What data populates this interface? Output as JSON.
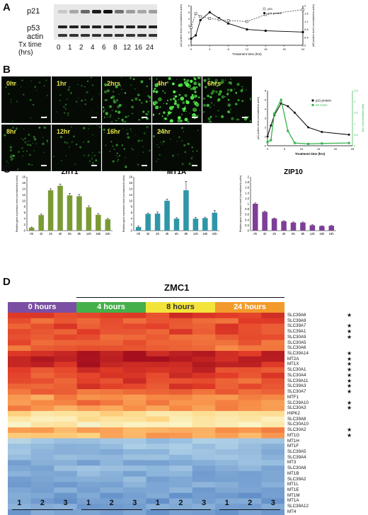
{
  "panels": {
    "a": "A",
    "b": "B",
    "c": "C",
    "d": "D"
  },
  "panelA": {
    "rows": [
      "p21",
      "p53",
      "actin"
    ],
    "tx_label": "Tx time\n(hrs)",
    "lanes": [
      "0",
      "1",
      "2",
      "4",
      "6",
      "8",
      "12",
      "16",
      "24"
    ],
    "chart": {
      "x": [
        0,
        1,
        2,
        4,
        6,
        8,
        12,
        16,
        24
      ],
      "p53": [
        0.9,
        1.6,
        1.45,
        1.35,
        1.3,
        1.25,
        1.2,
        1.55,
        1.8
      ],
      "p21": [
        1.0,
        1.5,
        3.8,
        5.0,
        4.1,
        3.3,
        2.4,
        2.2,
        2.0
      ],
      "xlabel": "Treatment time (hrs)",
      "ylabel_left": "p21 protein level (normalized to actin)",
      "ylabel_right": "p53 protein level (normalized to actin)",
      "legend": [
        "p53",
        "p21 protein"
      ]
    }
  },
  "panelB": {
    "labels": [
      "0hr",
      "1hr",
      "2hrs",
      "4hr",
      "6hrs",
      "8hr",
      "12hr",
      "16hr",
      "24hr"
    ],
    "density": [
      0.05,
      0.15,
      0.55,
      1.0,
      0.6,
      0.3,
      0.15,
      0.25,
      0.18
    ],
    "chart": {
      "x": [
        0,
        1,
        2,
        4,
        6,
        8,
        12,
        16,
        24
      ],
      "p21": [
        1.0,
        2.2,
        3.3,
        4.6,
        4.3,
        3.6,
        2.0,
        1.5,
        1.2
      ],
      "zn": [
        0.4,
        0.6,
        3.5,
        5.0,
        1.6,
        0.3,
        0.2,
        0.25,
        0.3
      ],
      "xlabel": "Treatment time (hrs)",
      "ylabel_left": "p21 protein level (normalized to actin)",
      "ylabel_right": "Zinc concentration (uM)",
      "legend": [
        "p21 protein",
        "Zn Conc."
      ],
      "colors": {
        "p21": "#111111",
        "zn": "#34b34a"
      }
    }
  },
  "panelC": {
    "categories": [
      "0h",
      "1h",
      "2h",
      "4h",
      "6h",
      "8h",
      "12h",
      "16h",
      "24h"
    ],
    "ylabel": "Relative gene expression level (normalized to actin)",
    "charts": [
      {
        "title": "ZnT1",
        "color": "#7a9a35",
        "ymax": 18,
        "ticks": [
          0,
          2,
          4,
          6,
          8,
          10,
          12,
          14,
          16,
          18
        ],
        "values": [
          1,
          5.2,
          13.5,
          15,
          11.8,
          11.5,
          7.8,
          5.3,
          3.8
        ],
        "err": [
          0.2,
          0.4,
          0.5,
          0.6,
          0.7,
          0.6,
          0.5,
          0.4,
          0.3
        ]
      },
      {
        "title": "MT1A",
        "color": "#2f96a8",
        "ymax": 18,
        "ticks": [
          0,
          2,
          4,
          6,
          8,
          10,
          12,
          14,
          16,
          18
        ],
        "values": [
          1.2,
          5.6,
          5.7,
          10,
          4,
          13.5,
          4,
          4.2,
          6
        ],
        "err": [
          0.4,
          0.3,
          0.5,
          0.6,
          0.3,
          3,
          0.4,
          0.3,
          0.8
        ]
      },
      {
        "title": "ZIP10",
        "color": "#7d3f98",
        "ymax": 2,
        "ticks": [
          0,
          0.2,
          0.4,
          0.6,
          0.8,
          1,
          1.2,
          1.4,
          1.6,
          1.8,
          2
        ],
        "values": [
          1,
          0.7,
          0.45,
          0.35,
          0.3,
          0.3,
          0.2,
          0.17,
          0.18
        ],
        "err": [
          0.03,
          0.03,
          0.02,
          0.02,
          0.02,
          0.02,
          0.02,
          0.01,
          0.02
        ]
      }
    ]
  },
  "panelD": {
    "title": "ZMC1",
    "times": [
      {
        "label": "0 hours",
        "color": "#7a4ea3"
      },
      {
        "label": "4 hours",
        "color": "#45b04a"
      },
      {
        "label": "8 hours",
        "color": "#f2e43a"
      },
      {
        "label": "24 hours",
        "color": "#f39a2c"
      }
    ],
    "genes": [
      "SLC39A6",
      "SLC39A9",
      "SLC39A7",
      "SLC39A1",
      "SLC30A9",
      "SLC30A5",
      "SLC30A6",
      "SLC39A14",
      "MT2A",
      "MT1X",
      "SLC30A1",
      "SLC30A4",
      "SLC39A11",
      "SLC39A3",
      "SLC30A7",
      "MTF1",
      "SLC39A10",
      "SLC30A3",
      "HIPK2",
      "SLC39A8",
      "SLC30A10",
      "SLC30A2",
      "MT1G",
      "MT1H",
      "MT1F",
      "SLC39A5",
      "SLC39A4",
      "MT3",
      "SLC30A8",
      "MT1B",
      "SLC39A2",
      "MT1L",
      "MT1E",
      "MT1M",
      "MT1A",
      "SLC39A12",
      "MT4"
    ],
    "starred": [
      true,
      false,
      true,
      true,
      true,
      false,
      false,
      true,
      true,
      true,
      true,
      true,
      true,
      true,
      true,
      false,
      true,
      true,
      false,
      false,
      false,
      true,
      true,
      false,
      false,
      false,
      false,
      false,
      false,
      false,
      false,
      false,
      false,
      false,
      false,
      false,
      false
    ],
    "replicates": [
      "1",
      "2",
      "3",
      "1",
      "2",
      "3",
      "1",
      "2",
      "3",
      "1",
      "2",
      "3"
    ],
    "star_symbol": "★"
  }
}
